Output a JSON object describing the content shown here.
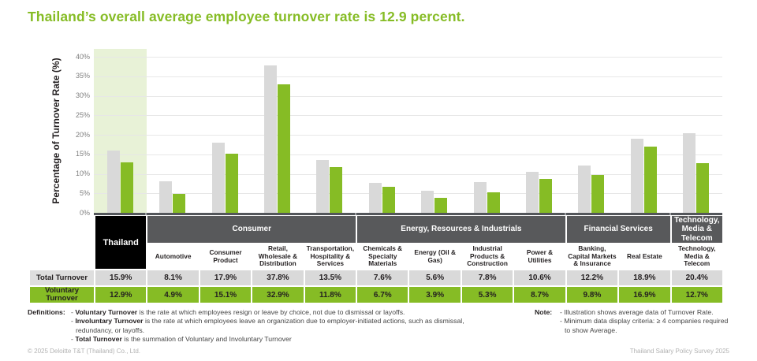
{
  "colors": {
    "green": "#86bc25",
    "light_green_highlight": "#e8f2d7",
    "gray_bar": "#d9d9d9",
    "dark_gray_header": "#58595b",
    "black_header": "#000000",
    "title_green": "#86bc25"
  },
  "chart_data": {
    "type": "bar",
    "title": "Thailand’s overall average employee turnover rate is 12.9 percent.",
    "ylabel": "Percentage of Turnover Rate (%)",
    "ylim": [
      0,
      40
    ],
    "yticks": [
      0,
      5,
      10,
      15,
      20,
      25,
      30,
      35,
      40
    ],
    "ytick_suffix": "%",
    "grid": true,
    "legend_position": "none",
    "highlight_category": "Thailand",
    "categories": [
      "Thailand",
      "Automotive",
      "Consumer Product",
      "Retail, Wholesale & Distribution",
      "Transportation, Hospitality & Services",
      "Chemicals & Specialty Materials",
      "Energy (Oil & Gas)",
      "Industrial Products & Construction",
      "Power & Utilities",
      "Banking, Capital Markets & Insurance",
      "Real Estate",
      "Technology, Media & Telecom"
    ],
    "groups": [
      {
        "label": "Consumer",
        "span": 4
      },
      {
        "label": "Energy, Resources & Industrials",
        "span": 4
      },
      {
        "label": "Financial Services",
        "span": 2
      },
      {
        "label": "Technology, Media & Telecom",
        "span": 1
      }
    ],
    "series": [
      {
        "name": "Total Turnover",
        "color": "#d9d9d9",
        "values": [
          15.9,
          8.1,
          17.9,
          37.8,
          13.5,
          7.6,
          5.6,
          7.8,
          10.6,
          12.2,
          18.9,
          20.4
        ]
      },
      {
        "name": "Voluntary Turnover",
        "color": "#86bc25",
        "values": [
          12.9,
          4.9,
          15.1,
          32.9,
          11.8,
          6.7,
          3.9,
          5.3,
          8.7,
          9.8,
          16.9,
          12.7
        ]
      }
    ],
    "value_suffix": "%"
  },
  "definitions": {
    "label": "Definitions:",
    "items": [
      {
        "term": "Voluntary Turnover",
        "text": "is the rate at which employees resign or leave by choice, not due to dismissal or layoffs."
      },
      {
        "term": "Involuntary Turnover",
        "text": "is the rate at which employees leave an organization due to employer-initiated actions, such as dismissal, redundancy, or layoffs."
      },
      {
        "term": "Total Turnover",
        "text": "is the summation of Voluntary and Involuntary Turnover"
      }
    ]
  },
  "note": {
    "label": "Note:",
    "items": [
      "Illustration shows average data of Turnover Rate.",
      "Minimum data display criteria: ≥ 4 companies required to show Average."
    ]
  },
  "footer": {
    "left": "© 2025 Deloitte T&T (Thailand) Co., Ltd.",
    "right": "Thailand Salary Policy Survey 2025"
  }
}
